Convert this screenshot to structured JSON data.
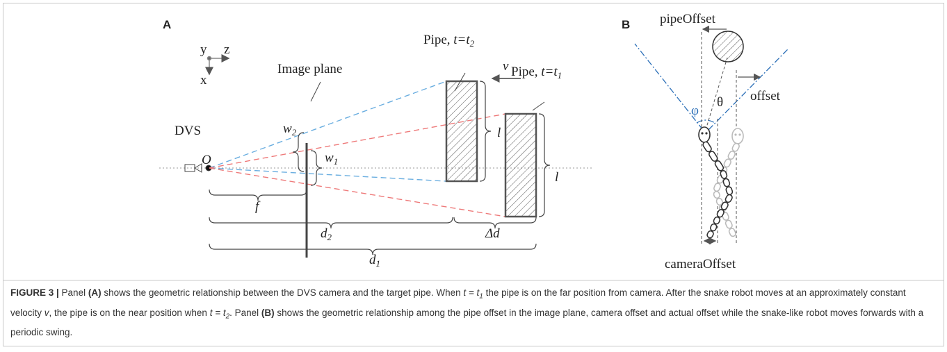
{
  "panel_a": {
    "label": "A",
    "axes": {
      "y": "y",
      "z": "z",
      "x": "x"
    },
    "image_plane": "Image plane",
    "pipe_t2": {
      "prefix": "Pipe, ",
      "math": "t=t",
      "sub": "2"
    },
    "velocity": "v",
    "pipe_t1": {
      "prefix": "Pipe, ",
      "math": "t=t",
      "sub": "1"
    },
    "camera": "DVS",
    "origin": "O",
    "w2": {
      "text": "w",
      "sub": "2"
    },
    "w1": {
      "text": "w",
      "sub": "1"
    },
    "length_near": "l",
    "length_far": "l",
    "focal": "f",
    "d2": {
      "text": "d",
      "sub": "2"
    },
    "delta_d": "Δd",
    "d1": {
      "text": "d",
      "sub": "1"
    }
  },
  "panel_b": {
    "label": "B",
    "pipe_offset": "pipeOffset",
    "offset": "offset",
    "phi": "φ",
    "theta": "θ",
    "camera_offset": "cameraOffset"
  },
  "caption": {
    "runs": [
      {
        "text": "FIGURE 3 |",
        "style": "bold"
      },
      {
        "text": " Panel ",
        "style": "plain"
      },
      {
        "text": "(A)",
        "style": "bold"
      },
      {
        "text": " shows the geometric relationship between the DVS camera and the target pipe. When ",
        "style": "plain"
      },
      {
        "text": "t = t",
        "style": "italic"
      },
      {
        "text": "1",
        "style": "sub"
      },
      {
        "text": " the pipe is on the far position from camera. After the snake robot moves at an approximately constant velocity ",
        "style": "plain"
      },
      {
        "text": "v",
        "style": "italic"
      },
      {
        "text": ", the pipe is on the near position when ",
        "style": "plain"
      },
      {
        "text": "t = t",
        "style": "italic"
      },
      {
        "text": "2",
        "style": "sub"
      },
      {
        "text": ". Panel ",
        "style": "plain"
      },
      {
        "text": "(B)",
        "style": "bold"
      },
      {
        "text": " shows the geometric relationship among the pipe offset in the image plane, camera offset and actual offset while the snake-like robot moves forwards with a periodic swing.",
        "style": "plain"
      }
    ]
  }
}
